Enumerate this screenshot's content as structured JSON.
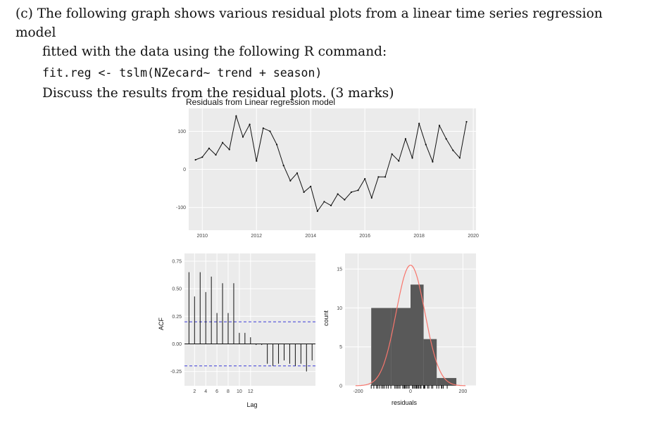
{
  "question": {
    "label": "(c)",
    "line1": "The following graph shows various residual plots from a linear time series regression model",
    "line2_start": "fitted with the data using the following",
    "line2_r": "R",
    "line2_end": "command:",
    "code": "fit.reg <- tslm(NZecard~ trend + season)",
    "line4": "Discuss the results from the residual plots. (3 marks)"
  },
  "chart_data": [
    {
      "type": "line",
      "title": "Residuals from Linear regression model",
      "xlabel": "",
      "ylabel": "",
      "x_ticks": [
        "2010",
        "2012",
        "2014",
        "2016",
        "2018",
        "2020"
      ],
      "y_ticks": [
        "100",
        "0",
        "-100"
      ],
      "xlim": [
        2009.5,
        2020.1
      ],
      "ylim": [
        -160,
        160
      ],
      "x": [
        2009.75,
        2010.0,
        2010.25,
        2010.5,
        2010.75,
        2011.0,
        2011.25,
        2011.5,
        2011.75,
        2012.0,
        2012.25,
        2012.5,
        2012.75,
        2013.0,
        2013.25,
        2013.5,
        2013.75,
        2014.0,
        2014.25,
        2014.5,
        2014.75,
        2015.0,
        2015.25,
        2015.5,
        2015.75,
        2016.0,
        2016.25,
        2016.5,
        2016.75,
        2017.0,
        2017.25,
        2017.5,
        2017.75,
        2018.0,
        2018.25,
        2018.5,
        2018.75,
        2019.0,
        2019.25,
        2019.5,
        2019.75
      ],
      "y": [
        25,
        32,
        55,
        38,
        70,
        52,
        140,
        85,
        118,
        22,
        108,
        100,
        65,
        10,
        -30,
        -10,
        -60,
        -45,
        -110,
        -85,
        -95,
        -65,
        -80,
        -60,
        -55,
        -25,
        -75,
        -20,
        -20,
        40,
        22,
        80,
        30,
        120,
        65,
        20,
        115,
        80,
        50,
        30,
        125
      ],
      "grid": true
    },
    {
      "type": "bar",
      "title": "",
      "xlabel": "Lag",
      "ylabel": "ACF",
      "categories": [
        "1",
        "2",
        "3",
        "4",
        "5",
        "6",
        "7",
        "8",
        "9",
        "10",
        "11",
        "12",
        "13",
        "14",
        "15",
        "16",
        "17",
        "18",
        "19",
        "20",
        "21",
        "22",
        "23"
      ],
      "values": [
        0.65,
        0.43,
        0.65,
        0.47,
        0.61,
        0.28,
        0.55,
        0.28,
        0.55,
        0.1,
        0.1,
        0.06,
        -0.01,
        -0.01,
        -0.18,
        -0.2,
        -0.18,
        -0.15,
        -0.18,
        -0.2,
        -0.18,
        -0.25,
        -0.15
      ],
      "ci": 0.2,
      "x_ticks": [
        "2",
        "4",
        "6",
        "8",
        "10",
        "12"
      ],
      "y_ticks": [
        "0.75",
        "0.50",
        "0.25",
        "0.00",
        "-0.25"
      ],
      "ylim": [
        -0.38,
        0.82
      ],
      "grid": true
    },
    {
      "type": "bar",
      "title": "",
      "xlabel": "residuals",
      "ylabel": "count",
      "bins": [
        {
          "from": -150,
          "to": -75,
          "count": 10
        },
        {
          "from": -75,
          "to": 0,
          "count": 10
        },
        {
          "from": 0,
          "to": 50,
          "count": 13
        },
        {
          "from": 50,
          "to": 100,
          "count": 6
        },
        {
          "from": 100,
          "to": 175,
          "count": 1
        }
      ],
      "density_curve": {
        "mean": 0,
        "sd": 55,
        "peak_count": 15.5,
        "color": "#f8766d"
      },
      "rug": [
        -150,
        -140,
        -130,
        -125,
        -118,
        -110,
        -105,
        -100,
        -92,
        -85,
        -75,
        -60,
        -55,
        -50,
        -45,
        -40,
        -30,
        -25,
        -22,
        -20,
        -15,
        -10,
        -5,
        8,
        10,
        15,
        20,
        22,
        25,
        30,
        32,
        38,
        40,
        50,
        52,
        55,
        65,
        70,
        80,
        85,
        100,
        108,
        118,
        120,
        125,
        140
      ],
      "x_ticks": [
        "-200",
        "0",
        "200"
      ],
      "y_ticks": [
        "15",
        "10",
        "5",
        "0"
      ],
      "xlim": [
        -250,
        250
      ],
      "ylim": [
        0,
        17
      ],
      "grid": true
    }
  ],
  "colors": {
    "panel_bg": "#ebebeb",
    "grid": "#ffffff",
    "bar_fill": "#595959",
    "ci_line": "#3b3bd6",
    "density": "#f8766d"
  }
}
